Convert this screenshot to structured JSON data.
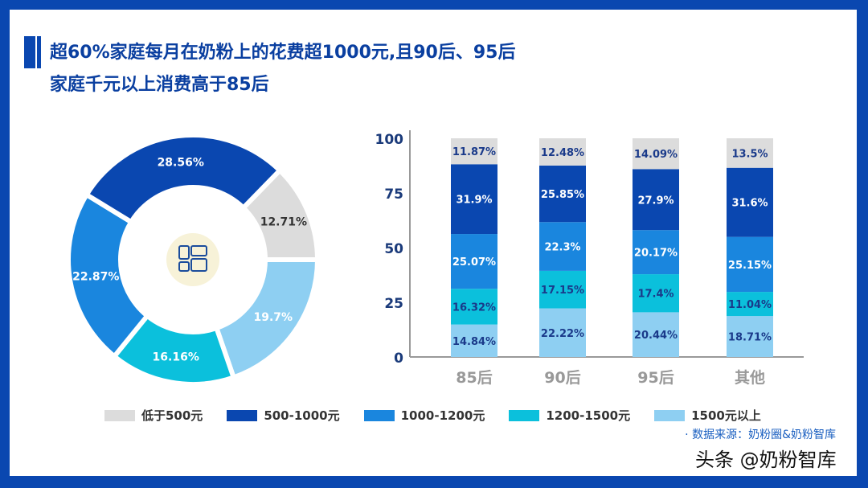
{
  "title_lines": [
    "超60%家庭每月在奶粉上的花费超1000元,且90后、95后",
    "家庭千元以上消费高于85后"
  ],
  "legend": [
    {
      "label": "低于500元",
      "color": "#dcdcdc"
    },
    {
      "label": "500-1000元",
      "color": "#0a47b0"
    },
    {
      "label": "1000-1200元",
      "color": "#1a86de"
    },
    {
      "label": "1200-1500元",
      "color": "#0bc0dc"
    },
    {
      "label": "1500元以上",
      "color": "#8ecff2"
    }
  ],
  "source": "· 数据来源：奶粉圈&奶粉智库",
  "watermark": "头条 @奶粉智库",
  "chart_data": [
    {
      "type": "pie",
      "donut": true,
      "slices": [
        {
          "category": "低于500元",
          "value": 12.71,
          "label": "12.71%"
        },
        {
          "category": "1500元以上",
          "value": 19.7,
          "label": "19.7%"
        },
        {
          "category": "1200-1500元",
          "value": 16.16,
          "label": "16.16%"
        },
        {
          "category": "1000-1200元",
          "value": 22.87,
          "label": "22.87%"
        },
        {
          "category": "500-1000元",
          "value": 28.56,
          "label": "28.56%"
        }
      ],
      "center_icon": "dashboard-grid-icon"
    },
    {
      "type": "bar",
      "stacked": true,
      "categories": [
        "85后",
        "90后",
        "95后",
        "其他"
      ],
      "ylim": [
        0,
        100
      ],
      "yticks": [
        "0",
        "25",
        "50",
        "75",
        "100"
      ],
      "series": [
        {
          "name": "1500元以上",
          "values": [
            14.84,
            22.22,
            20.44,
            18.71
          ],
          "labels": [
            "14.84%",
            "22.22%",
            "20.44%",
            "18.71%"
          ]
        },
        {
          "name": "1200-1500元",
          "values": [
            16.32,
            17.15,
            17.4,
            11.04
          ],
          "labels": [
            "16.32%",
            "17.15%",
            "17.4%",
            "11.04%"
          ]
        },
        {
          "name": "1000-1200元",
          "values": [
            25.07,
            22.3,
            20.17,
            25.15
          ],
          "labels": [
            "25.07%",
            "22.3%",
            "20.17%",
            "25.15%"
          ]
        },
        {
          "name": "500-1000元",
          "values": [
            31.9,
            25.85,
            27.9,
            31.6
          ],
          "labels": [
            "31.9%",
            "25.85%",
            "27.9%",
            "31.6%"
          ]
        },
        {
          "name": "低于500元",
          "values": [
            11.87,
            12.48,
            14.09,
            13.5
          ],
          "labels": [
            "11.87%",
            "12.48%",
            "14.09%",
            "13.5%"
          ]
        }
      ]
    }
  ]
}
